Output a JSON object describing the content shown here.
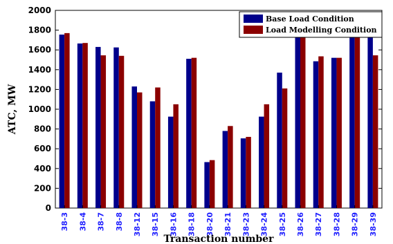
{
  "chart_data": {
    "type": "bar",
    "title": "",
    "xlabel": "Transaction number",
    "ylabel": "ATC, MW",
    "ylim": [
      0,
      2000
    ],
    "yticks": [
      0,
      200,
      400,
      600,
      800,
      1000,
      1200,
      1400,
      1600,
      1800,
      2000
    ],
    "grid": false,
    "legend_position": "top-right",
    "categories": [
      "38-3",
      "38-4",
      "38-7",
      "38-8",
      "38-12",
      "38-15",
      "38-16",
      "38-18",
      "38-20",
      "38-21",
      "38-23",
      "38-24",
      "38-25",
      "38-26",
      "38-27",
      "38-28",
      "38-29",
      "38-39"
    ],
    "series": [
      {
        "name": "Base Load Condition",
        "color": "#00008b",
        "values": [
          1755,
          1665,
          1630,
          1625,
          1230,
          1080,
          925,
          1510,
          465,
          780,
          705,
          925,
          1370,
          1750,
          1485,
          1520,
          1750,
          1750
        ]
      },
      {
        "name": "Load Modelling Condition",
        "color": "#8b0000",
        "values": [
          1770,
          1670,
          1545,
          1540,
          1170,
          1220,
          1050,
          1520,
          485,
          830,
          720,
          1050,
          1210,
          1750,
          1535,
          1520,
          1750,
          1545
        ]
      }
    ]
  }
}
